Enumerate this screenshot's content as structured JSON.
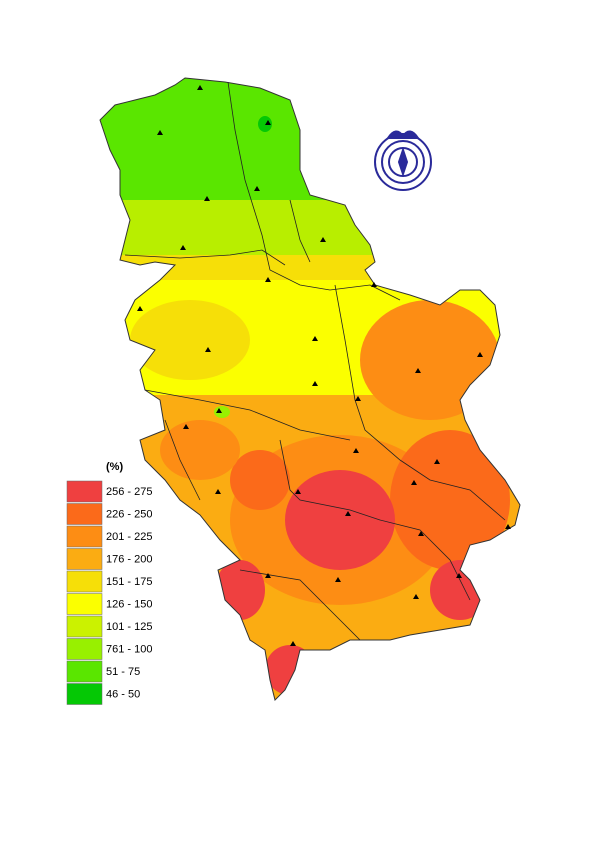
{
  "legend": {
    "title": "(%)",
    "items": [
      {
        "label": "256 - 275",
        "color": "#ef4040"
      },
      {
        "label": "226 - 250",
        "color": "#fb6a1a"
      },
      {
        "label": "201 - 225",
        "color": "#fd8d14"
      },
      {
        "label": "176 - 200",
        "color": "#fbac12"
      },
      {
        "label": "151 - 175",
        "color": "#f6df08"
      },
      {
        "label": "126 - 150",
        "color": "#fbff00"
      },
      {
        "label": "101 - 125",
        "color": "#cbf200"
      },
      {
        "label": "761 - 100",
        "color": "#98f000"
      },
      {
        "label": "51 - 75",
        "color": "#5ae600"
      },
      {
        "label": "46 - 50",
        "color": "#05c805"
      }
    ]
  }
}
